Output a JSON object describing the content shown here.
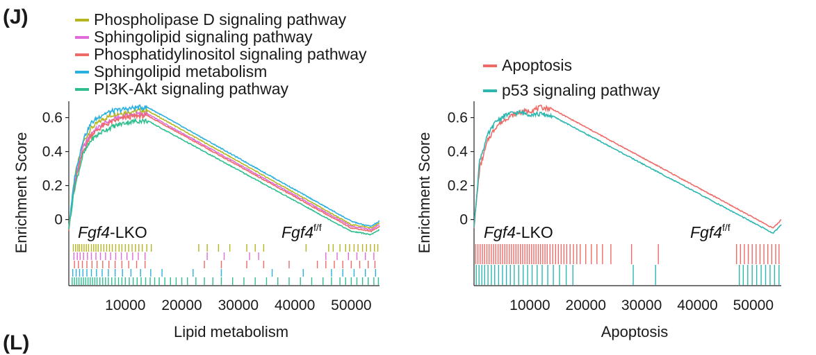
{
  "panel_label": "(J)",
  "next_panel_label": "(L)",
  "chart_data": [
    {
      "type": "line",
      "title": "",
      "xlabel": "Lipid metabolism",
      "ylabel": "Enrichment Score",
      "xlim": [
        0,
        55000
      ],
      "ylim": [
        -0.12,
        0.68
      ],
      "xticks": [
        10000,
        20000,
        30000,
        40000,
        50000
      ],
      "yticks": [
        0,
        0.2,
        0.4,
        0.6
      ],
      "ytick_labels": [
        "0",
        "0.2",
        "0.4",
        "0.6"
      ],
      "legend_position": "top-left",
      "left_group": {
        "italic": "Fgf4",
        "rest": "-LKO"
      },
      "right_group": {
        "italic": "Fgf4",
        "sup": "f/f"
      },
      "series": [
        {
          "name": "Phospholipase D signaling pathway",
          "color": "#b5b520",
          "x": [
            0,
            1000,
            2500,
            4000,
            6000,
            8000,
            10000,
            12000,
            14000,
            50000,
            52000,
            53500,
            55000
          ],
          "y": [
            -0.05,
            0.25,
            0.45,
            0.54,
            0.59,
            0.62,
            0.63,
            0.64,
            0.64,
            -0.03,
            -0.04,
            -0.05,
            -0.02
          ],
          "hits": [
            800,
            1200,
            1600,
            1900,
            2300,
            2700,
            3100,
            3500,
            4000,
            4400,
            4800,
            5200,
            5700,
            6200,
            6700,
            7200,
            7700,
            8300,
            8900,
            9400,
            10000,
            10600,
            11200,
            11800,
            12400,
            13000,
            13800,
            14600,
            23000,
            24500,
            26500,
            28500,
            31500,
            33000,
            34500,
            42000,
            46000,
            46800,
            48000,
            49000,
            49700,
            50500,
            51200,
            52000,
            52700,
            53400,
            54100,
            54700
          ]
        },
        {
          "name": "Sphingolipid signaling pathway",
          "color": "#e06ad8",
          "x": [
            0,
            1000,
            2500,
            4000,
            6000,
            8000,
            10000,
            12000,
            14000,
            50000,
            52000,
            53500,
            55000
          ],
          "y": [
            -0.05,
            0.22,
            0.42,
            0.51,
            0.56,
            0.59,
            0.61,
            0.62,
            0.62,
            -0.04,
            -0.05,
            -0.06,
            -0.03
          ],
          "hits": [
            900,
            1500,
            2000,
            2600,
            3300,
            4000,
            4800,
            5600,
            6500,
            7400,
            8300,
            9300,
            10300,
            11300,
            12300,
            13500,
            24500,
            27500,
            32000,
            33600,
            45500,
            47500,
            49500,
            51000,
            52500,
            54000
          ]
        },
        {
          "name": "Phosphatidylinositol signaling pathway",
          "color": "#ee6a66",
          "x": [
            0,
            1000,
            2500,
            4000,
            6000,
            8000,
            10000,
            12000,
            14000,
            50000,
            52000,
            53500,
            55000
          ],
          "y": [
            -0.05,
            0.2,
            0.4,
            0.5,
            0.55,
            0.58,
            0.6,
            0.61,
            0.61,
            -0.05,
            -0.06,
            -0.07,
            -0.04
          ],
          "hits": [
            1000,
            1700,
            2400,
            3200,
            4100,
            5000,
            6000,
            7100,
            8200,
            9400,
            10600,
            12000,
            13500,
            24000,
            27000,
            31500,
            34500,
            39000,
            44000,
            45500,
            47000,
            48500,
            50000,
            51500,
            53000,
            54200
          ]
        },
        {
          "name": "Sphingolipid metabolism",
          "color": "#29b0e0",
          "x": [
            0,
            1000,
            2500,
            4000,
            6000,
            8000,
            10000,
            12000,
            14000,
            50000,
            52000,
            53500,
            55000
          ],
          "y": [
            -0.05,
            0.24,
            0.47,
            0.57,
            0.62,
            0.64,
            0.65,
            0.66,
            0.66,
            -0.01,
            -0.03,
            -0.04,
            -0.01
          ],
          "hits": [
            700,
            1300,
            1900,
            2500,
            3200,
            4000,
            4900,
            5900,
            7000,
            8200,
            9500,
            11000,
            12700,
            14500,
            16500,
            22000,
            27000,
            36000,
            41500,
            46500,
            48500,
            50500,
            52500,
            54300
          ]
        },
        {
          "name": "PI3K-Akt signaling pathway",
          "color": "#2fbf8f",
          "x": [
            0,
            1000,
            2500,
            4000,
            6000,
            8000,
            10000,
            12000,
            14000,
            50000,
            52000,
            53500,
            55000
          ],
          "y": [
            -0.05,
            0.18,
            0.38,
            0.47,
            0.52,
            0.55,
            0.57,
            0.58,
            0.58,
            -0.07,
            -0.08,
            -0.09,
            -0.06
          ],
          "hits": [
            600,
            1000,
            1400,
            1800,
            2200,
            2600,
            3000,
            3400,
            3800,
            4200,
            4600,
            5000,
            5500,
            6000,
            6500,
            7000,
            7600,
            8200,
            8800,
            9400,
            10000,
            10700,
            11400,
            12100,
            12800,
            13600,
            14400,
            15200,
            16000,
            17000,
            18000,
            19000,
            20000,
            21000,
            22500,
            24000,
            25500,
            27000,
            29000,
            31000,
            33000,
            35000,
            37000,
            39000,
            41000,
            43000,
            45000,
            46500,
            48000,
            49000,
            50000,
            51000,
            52000,
            53000,
            54000,
            54800
          ]
        }
      ]
    },
    {
      "type": "line",
      "title": "",
      "xlabel": "Apoptosis",
      "ylabel": "Enrichment Score",
      "xlim": [
        0,
        55000
      ],
      "ylim": [
        -0.12,
        0.68
      ],
      "xticks": [
        10000,
        20000,
        30000,
        40000,
        50000
      ],
      "yticks": [
        0,
        0.2,
        0.4,
        0.6
      ],
      "ytick_labels": [
        "0",
        "0.2",
        "0.4",
        "0.6"
      ],
      "legend_position": "top-right",
      "left_group": {
        "italic": "Fgf4",
        "rest": "-LKO"
      },
      "right_group": {
        "italic": "Fgf4",
        "sup": "f/f"
      },
      "series": [
        {
          "name": "Apoptosis",
          "color": "#ee6a66",
          "x": [
            0,
            1000,
            2500,
            4000,
            6000,
            8000,
            10000,
            12000,
            14000,
            53500,
            54200,
            55000
          ],
          "y": [
            -0.04,
            0.3,
            0.47,
            0.55,
            0.6,
            0.63,
            0.64,
            0.66,
            0.65,
            -0.05,
            -0.03,
            0.0
          ],
          "hits": [
            300,
            700,
            1100,
            1500,
            1900,
            2300,
            2700,
            3100,
            3500,
            3900,
            4300,
            4700,
            5100,
            5500,
            5900,
            6300,
            6700,
            7100,
            7500,
            7900,
            8300,
            8700,
            9100,
            9500,
            9900,
            10300,
            10700,
            11100,
            11500,
            11900,
            12300,
            12700,
            13100,
            13600,
            14100,
            14600,
            15100,
            15600,
            16100,
            16600,
            17200,
            17800,
            18400,
            19000,
            20000,
            21000,
            22000,
            23000,
            24500,
            28200,
            33000,
            47000,
            47700,
            48400,
            49100,
            49800,
            50500,
            51200,
            51900,
            52600,
            53300,
            54000,
            54600
          ]
        },
        {
          "name": "p53 signaling pathway",
          "color": "#2bb7b0",
          "x": [
            0,
            1000,
            2500,
            4000,
            6000,
            8000,
            10000,
            12000,
            14000,
            53500,
            54200,
            55000
          ],
          "y": [
            -0.04,
            0.35,
            0.5,
            0.58,
            0.62,
            0.63,
            0.62,
            0.62,
            0.61,
            -0.08,
            -0.06,
            -0.03
          ],
          "hits": [
            400,
            900,
            1400,
            1900,
            2500,
            3100,
            3700,
            4400,
            5100,
            5800,
            6500,
            7200,
            8000,
            8800,
            9600,
            10400,
            11300,
            12200,
            13200,
            14200,
            15300,
            16500,
            17700,
            28500,
            32500,
            47500,
            48200,
            49000,
            49800,
            50600,
            51400,
            52200,
            53000,
            53800,
            54600
          ]
        }
      ]
    }
  ]
}
